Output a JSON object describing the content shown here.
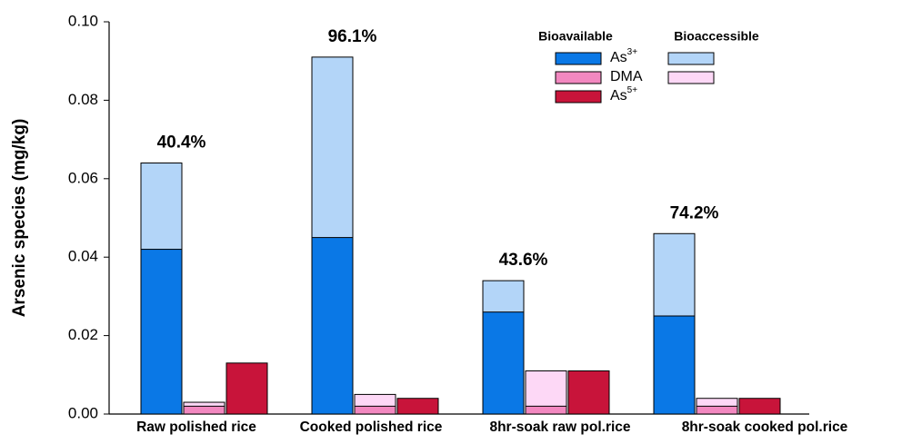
{
  "chart_data": {
    "type": "bar",
    "y_label": "Arsenic species (mg/kg)",
    "categories": [
      "Raw polished rice",
      "Cooked polished rice",
      "8hr-soak raw pol.rice",
      "8hr-soak cooked pol.rice"
    ],
    "annotations": [
      "40.4%",
      "96.1%",
      "43.6%",
      "74.2%"
    ],
    "legend_headers": [
      "Bioavailable",
      "Bioaccessible"
    ],
    "series": [
      {
        "name": "As",
        "superscript": "3+",
        "color": "#0a78e6",
        "values": [
          0.042,
          0.045,
          0.026,
          0.025
        ],
        "accessible_color": "#b3d5f8",
        "accessible_values": [
          0.064,
          0.091,
          0.034,
          0.046
        ]
      },
      {
        "name": "DMA",
        "color": "#f288c0",
        "values": [
          0.002,
          0.002,
          0.002,
          0.002
        ],
        "accessible_color": "#fdd8f6",
        "accessible_values": [
          0.003,
          0.005,
          0.011,
          0.004
        ]
      },
      {
        "name": "As",
        "superscript": "5+",
        "color": "#c8143a",
        "values": [
          0.013,
          0.004,
          0.011,
          0.004
        ]
      }
    ],
    "ylim": [
      0,
      0.1
    ],
    "yticks": [
      {
        "value": 0,
        "label": "0.00"
      },
      {
        "value": 0.02,
        "label": "0.02"
      },
      {
        "value": 0.04,
        "label": "0.04"
      },
      {
        "value": 0.06,
        "label": "0.06"
      },
      {
        "value": 0.08,
        "label": "0.08"
      },
      {
        "value": 0.1,
        "label": "0.10"
      }
    ]
  }
}
